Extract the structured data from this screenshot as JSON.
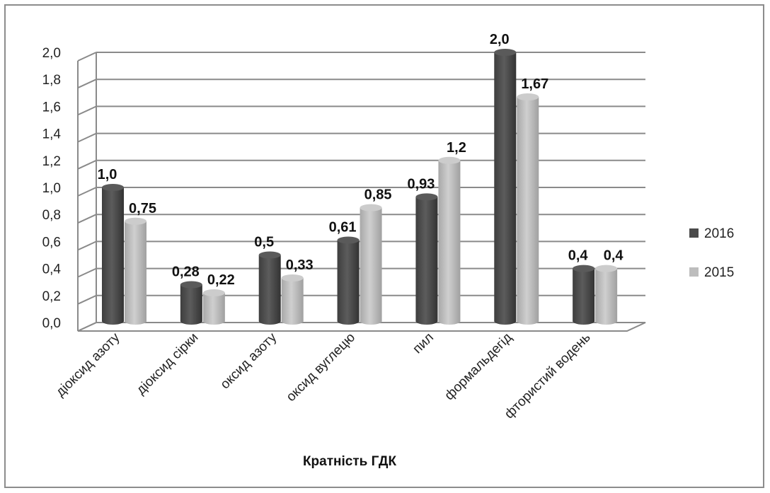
{
  "chart_data": {
    "type": "bar",
    "title": "",
    "xlabel": "Кратність ГДК",
    "ylabel": "",
    "ylim": [
      0,
      2.0
    ],
    "yticks": [
      "0,0",
      "0,2",
      "0,4",
      "0,6",
      "0,8",
      "1,0",
      "1,2",
      "1,4",
      "1,6",
      "1,8",
      "2,0"
    ],
    "grid": true,
    "legend_position": "right",
    "categories": [
      "діоксид азоту",
      "діоксид сірки",
      "оксид азоту",
      "оксид вуглецю",
      "пил",
      "формальдегід",
      "фтористий водень"
    ],
    "series": [
      {
        "name": "2016",
        "color": "#4a4a4a",
        "values": [
          1.0,
          0.28,
          0.5,
          0.61,
          0.93,
          2.0,
          0.4
        ],
        "labels": [
          "1,0",
          "0,28",
          "0,5",
          "0,61",
          "0,93",
          "2,0",
          "0,4"
        ]
      },
      {
        "name": "2015",
        "color": "#bdbdbd",
        "values": [
          0.75,
          0.22,
          0.33,
          0.85,
          1.2,
          1.67,
          0.4
        ],
        "labels": [
          "0,75",
          "0,22",
          "0,33",
          "0,85",
          "1,2",
          "1,67",
          "0,4"
        ]
      }
    ]
  }
}
